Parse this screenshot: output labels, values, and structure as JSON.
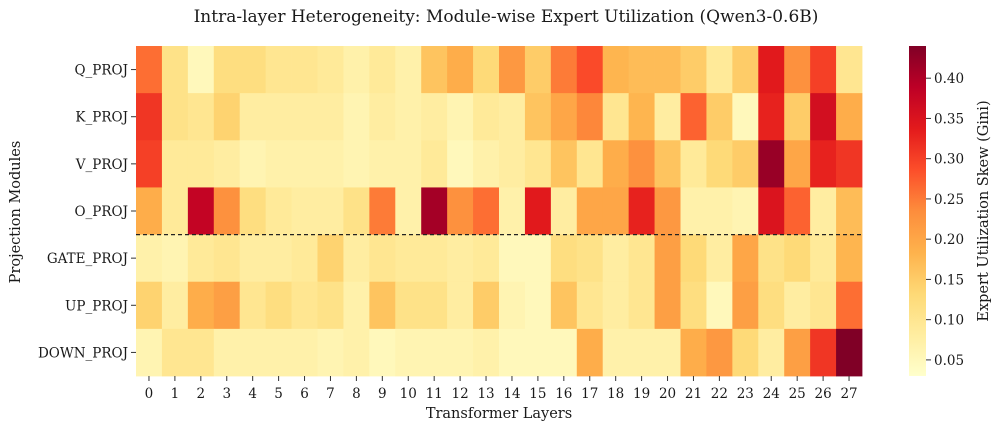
{
  "chart_data": {
    "type": "heatmap",
    "title": "Intra-layer Heterogeneity: Module-wise Expert Utilization (Qwen3-0.6B)",
    "xlabel": "Transformer Layers",
    "ylabel": "Projection Modules",
    "colorbar_label": "Expert Utilization Skew (Gini)",
    "x_categories": [
      "0",
      "1",
      "2",
      "3",
      "4",
      "5",
      "6",
      "7",
      "8",
      "9",
      "10",
      "11",
      "12",
      "13",
      "14",
      "15",
      "16",
      "17",
      "18",
      "19",
      "20",
      "21",
      "22",
      "23",
      "24",
      "25",
      "26",
      "27"
    ],
    "y_categories": [
      "Q_PROJ",
      "K_PROJ",
      "V_PROJ",
      "O_PROJ",
      "GATE_PROJ",
      "UP_PROJ",
      "DOWN_PROJ"
    ],
    "colorbar_range": [
      0.03,
      0.44
    ],
    "colorbar_ticks": [
      "0.05",
      "0.10",
      "0.15",
      "0.20",
      "0.25",
      "0.30",
      "0.35",
      "0.40"
    ],
    "colormap": "YlOrRd",
    "separator_after_row": "O_PROJ",
    "values": [
      [
        0.26,
        0.11,
        0.05,
        0.12,
        0.12,
        0.1,
        0.1,
        0.09,
        0.07,
        0.09,
        0.07,
        0.16,
        0.19,
        0.13,
        0.22,
        0.15,
        0.25,
        0.29,
        0.18,
        0.17,
        0.17,
        0.15,
        0.09,
        0.15,
        0.34,
        0.23,
        0.3,
        0.1
      ],
      [
        0.31,
        0.11,
        0.1,
        0.14,
        0.08,
        0.08,
        0.08,
        0.08,
        0.06,
        0.08,
        0.07,
        0.08,
        0.06,
        0.09,
        0.08,
        0.16,
        0.2,
        0.24,
        0.1,
        0.18,
        0.08,
        0.27,
        0.15,
        0.05,
        0.33,
        0.15,
        0.36,
        0.19
      ],
      [
        0.3,
        0.09,
        0.09,
        0.08,
        0.06,
        0.07,
        0.07,
        0.07,
        0.06,
        0.07,
        0.07,
        0.09,
        0.05,
        0.07,
        0.08,
        0.1,
        0.16,
        0.1,
        0.19,
        0.23,
        0.16,
        0.09,
        0.13,
        0.15,
        0.42,
        0.2,
        0.33,
        0.31
      ],
      [
        0.19,
        0.09,
        0.38,
        0.23,
        0.12,
        0.09,
        0.08,
        0.08,
        0.11,
        0.25,
        0.07,
        0.41,
        0.23,
        0.26,
        0.07,
        0.34,
        0.08,
        0.2,
        0.2,
        0.33,
        0.22,
        0.07,
        0.07,
        0.06,
        0.35,
        0.27,
        0.08,
        0.17
      ],
      [
        0.07,
        0.06,
        0.09,
        0.1,
        0.08,
        0.08,
        0.09,
        0.14,
        0.08,
        0.1,
        0.09,
        0.09,
        0.08,
        0.09,
        0.05,
        0.05,
        0.12,
        0.11,
        0.08,
        0.1,
        0.21,
        0.13,
        0.08,
        0.2,
        0.11,
        0.13,
        0.09,
        0.18
      ],
      [
        0.14,
        0.08,
        0.19,
        0.21,
        0.1,
        0.12,
        0.1,
        0.11,
        0.07,
        0.16,
        0.11,
        0.11,
        0.08,
        0.15,
        0.06,
        0.05,
        0.16,
        0.1,
        0.08,
        0.1,
        0.21,
        0.12,
        0.05,
        0.21,
        0.12,
        0.08,
        0.1,
        0.26
      ],
      [
        0.06,
        0.1,
        0.1,
        0.07,
        0.07,
        0.07,
        0.07,
        0.06,
        0.07,
        0.05,
        0.06,
        0.06,
        0.06,
        0.07,
        0.05,
        0.05,
        0.05,
        0.19,
        0.07,
        0.07,
        0.07,
        0.19,
        0.22,
        0.13,
        0.08,
        0.21,
        0.31,
        0.44
      ]
    ]
  }
}
